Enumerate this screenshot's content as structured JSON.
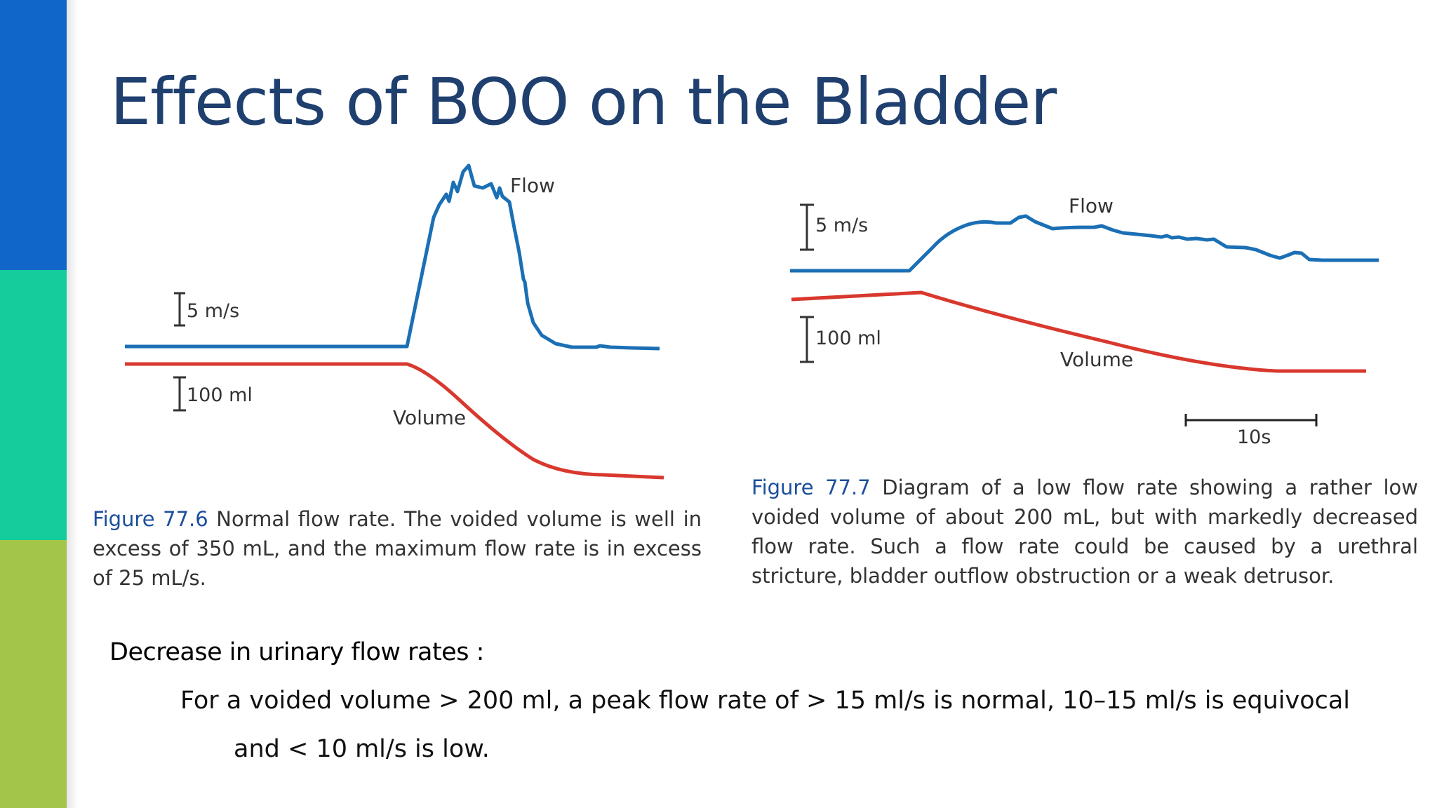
{
  "colors": {
    "band_top": "#1167c9",
    "band_mid": "#14cc9c",
    "band_bot": "#a3c64a",
    "title": "#1f3f6e",
    "flow_line": "#1b6fb4",
    "volume_line": "#d8382e",
    "figure_label": "#1b4f9c"
  },
  "title": "Effects of BOO on the Bladder",
  "figure_left": {
    "flow_label": "Flow",
    "volume_label": "Volume",
    "flow_scale": "5 m/s",
    "volume_scale": "100 ml",
    "caption_label": "Figure 77.6",
    "caption_text": "Normal flow rate. The voided volume is well in excess of 350 mL, and the maximum flow rate is in excess of 25 mL/s."
  },
  "figure_right": {
    "flow_label": "Flow",
    "volume_label": "Volume",
    "flow_scale": "5 m/s",
    "volume_scale": "100 ml",
    "time_scale": "10s",
    "caption_label": "Figure 77.7",
    "caption_text": "Diagram of a low flow rate showing a rather low voided volume of about 200 mL, but with markedly decreased flow rate. Such a flow rate could be caused by a urethral stricture, bladder outflow obstruction or a weak detrusor."
  },
  "section": {
    "heading": "Decrease in urinary flow rates :",
    "line1": "For a voided volume > 200 ml, a peak flow rate of > 15 ml/s is normal, 10–15 ml/s is equivocal",
    "line2": "and  < 10 ml/s is low."
  }
}
